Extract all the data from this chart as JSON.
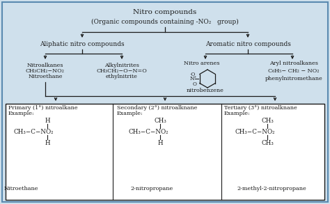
{
  "bg_color": "#cfe0ec",
  "box_bg": "#ffffff",
  "text_color": "#1a1a1a",
  "border_color": "#5a8ab0",
  "title_line1": "Nitro compounds",
  "title_line2": "(Organic compounds containing -NO₂   group)",
  "aliphatic_label": "Aliphatic nitro compounds",
  "aromatic_label": "Aromatic nitro compounds",
  "nitroalkanes_line1": "Nitroalkanes",
  "nitroalkanes_line2": "CH₃CH₂−NO₂",
  "nitroalkanes_line3": "Nitroethane",
  "alkylnitrites_line1": "Alkylnitrites",
  "alkylnitrites_line2": "CH₃CH₂−O−N=O",
  "alkylnitrites_line3": "ethylnitrite",
  "nitroarenes_line1": "Nitro arenes",
  "nitroarenes_line3": "nitrobenzene",
  "arylnitro_line1": "Aryl nitroalkanes",
  "arylnitro_line2": "C₆H₅− CH₂ − NO₂",
  "arylnitro_line3": "phenylnitromethane",
  "box1_title": "Primary (Ī°) nitroalkane",
  "box1_ex": "Example:",
  "box1_name": "Nitroethane",
  "box2_title": "Secondary (2°) nitroalknane",
  "box2_ex": "Example:",
  "box2_name": "2-nitropropane",
  "box3_title": "Tertiary (3°) nitroalknane",
  "box3_ex": "Example:",
  "box3_name": "2-methyl-2-nitropropane",
  "figw": 4.74,
  "figh": 2.93,
  "dpi": 100
}
